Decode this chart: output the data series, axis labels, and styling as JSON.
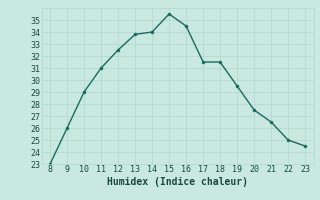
{
  "x": [
    8,
    9,
    10,
    11,
    12,
    13,
    14,
    15,
    16,
    17,
    18,
    19,
    20,
    21,
    22,
    23
  ],
  "y": [
    23,
    26,
    29,
    31,
    32.5,
    33.8,
    34,
    35.5,
    34.5,
    31.5,
    31.5,
    29.5,
    27.5,
    26.5,
    25,
    24.5
  ],
  "xlabel": "Humidex (Indice chaleur)",
  "ylim": [
    23,
    36
  ],
  "xlim": [
    7.5,
    23.5
  ],
  "yticks": [
    23,
    24,
    25,
    26,
    27,
    28,
    29,
    30,
    31,
    32,
    33,
    34,
    35
  ],
  "xticks": [
    8,
    9,
    10,
    11,
    12,
    13,
    14,
    15,
    16,
    17,
    18,
    19,
    20,
    21,
    22,
    23
  ],
  "line_color": "#1a6b5e",
  "marker_color": "#1a6b5e",
  "bg_color": "#c8e8e0",
  "grid_color": "#b0d8d0",
  "font_color": "#1a4a3a",
  "font_size_tick": 6,
  "font_size_xlabel": 7
}
